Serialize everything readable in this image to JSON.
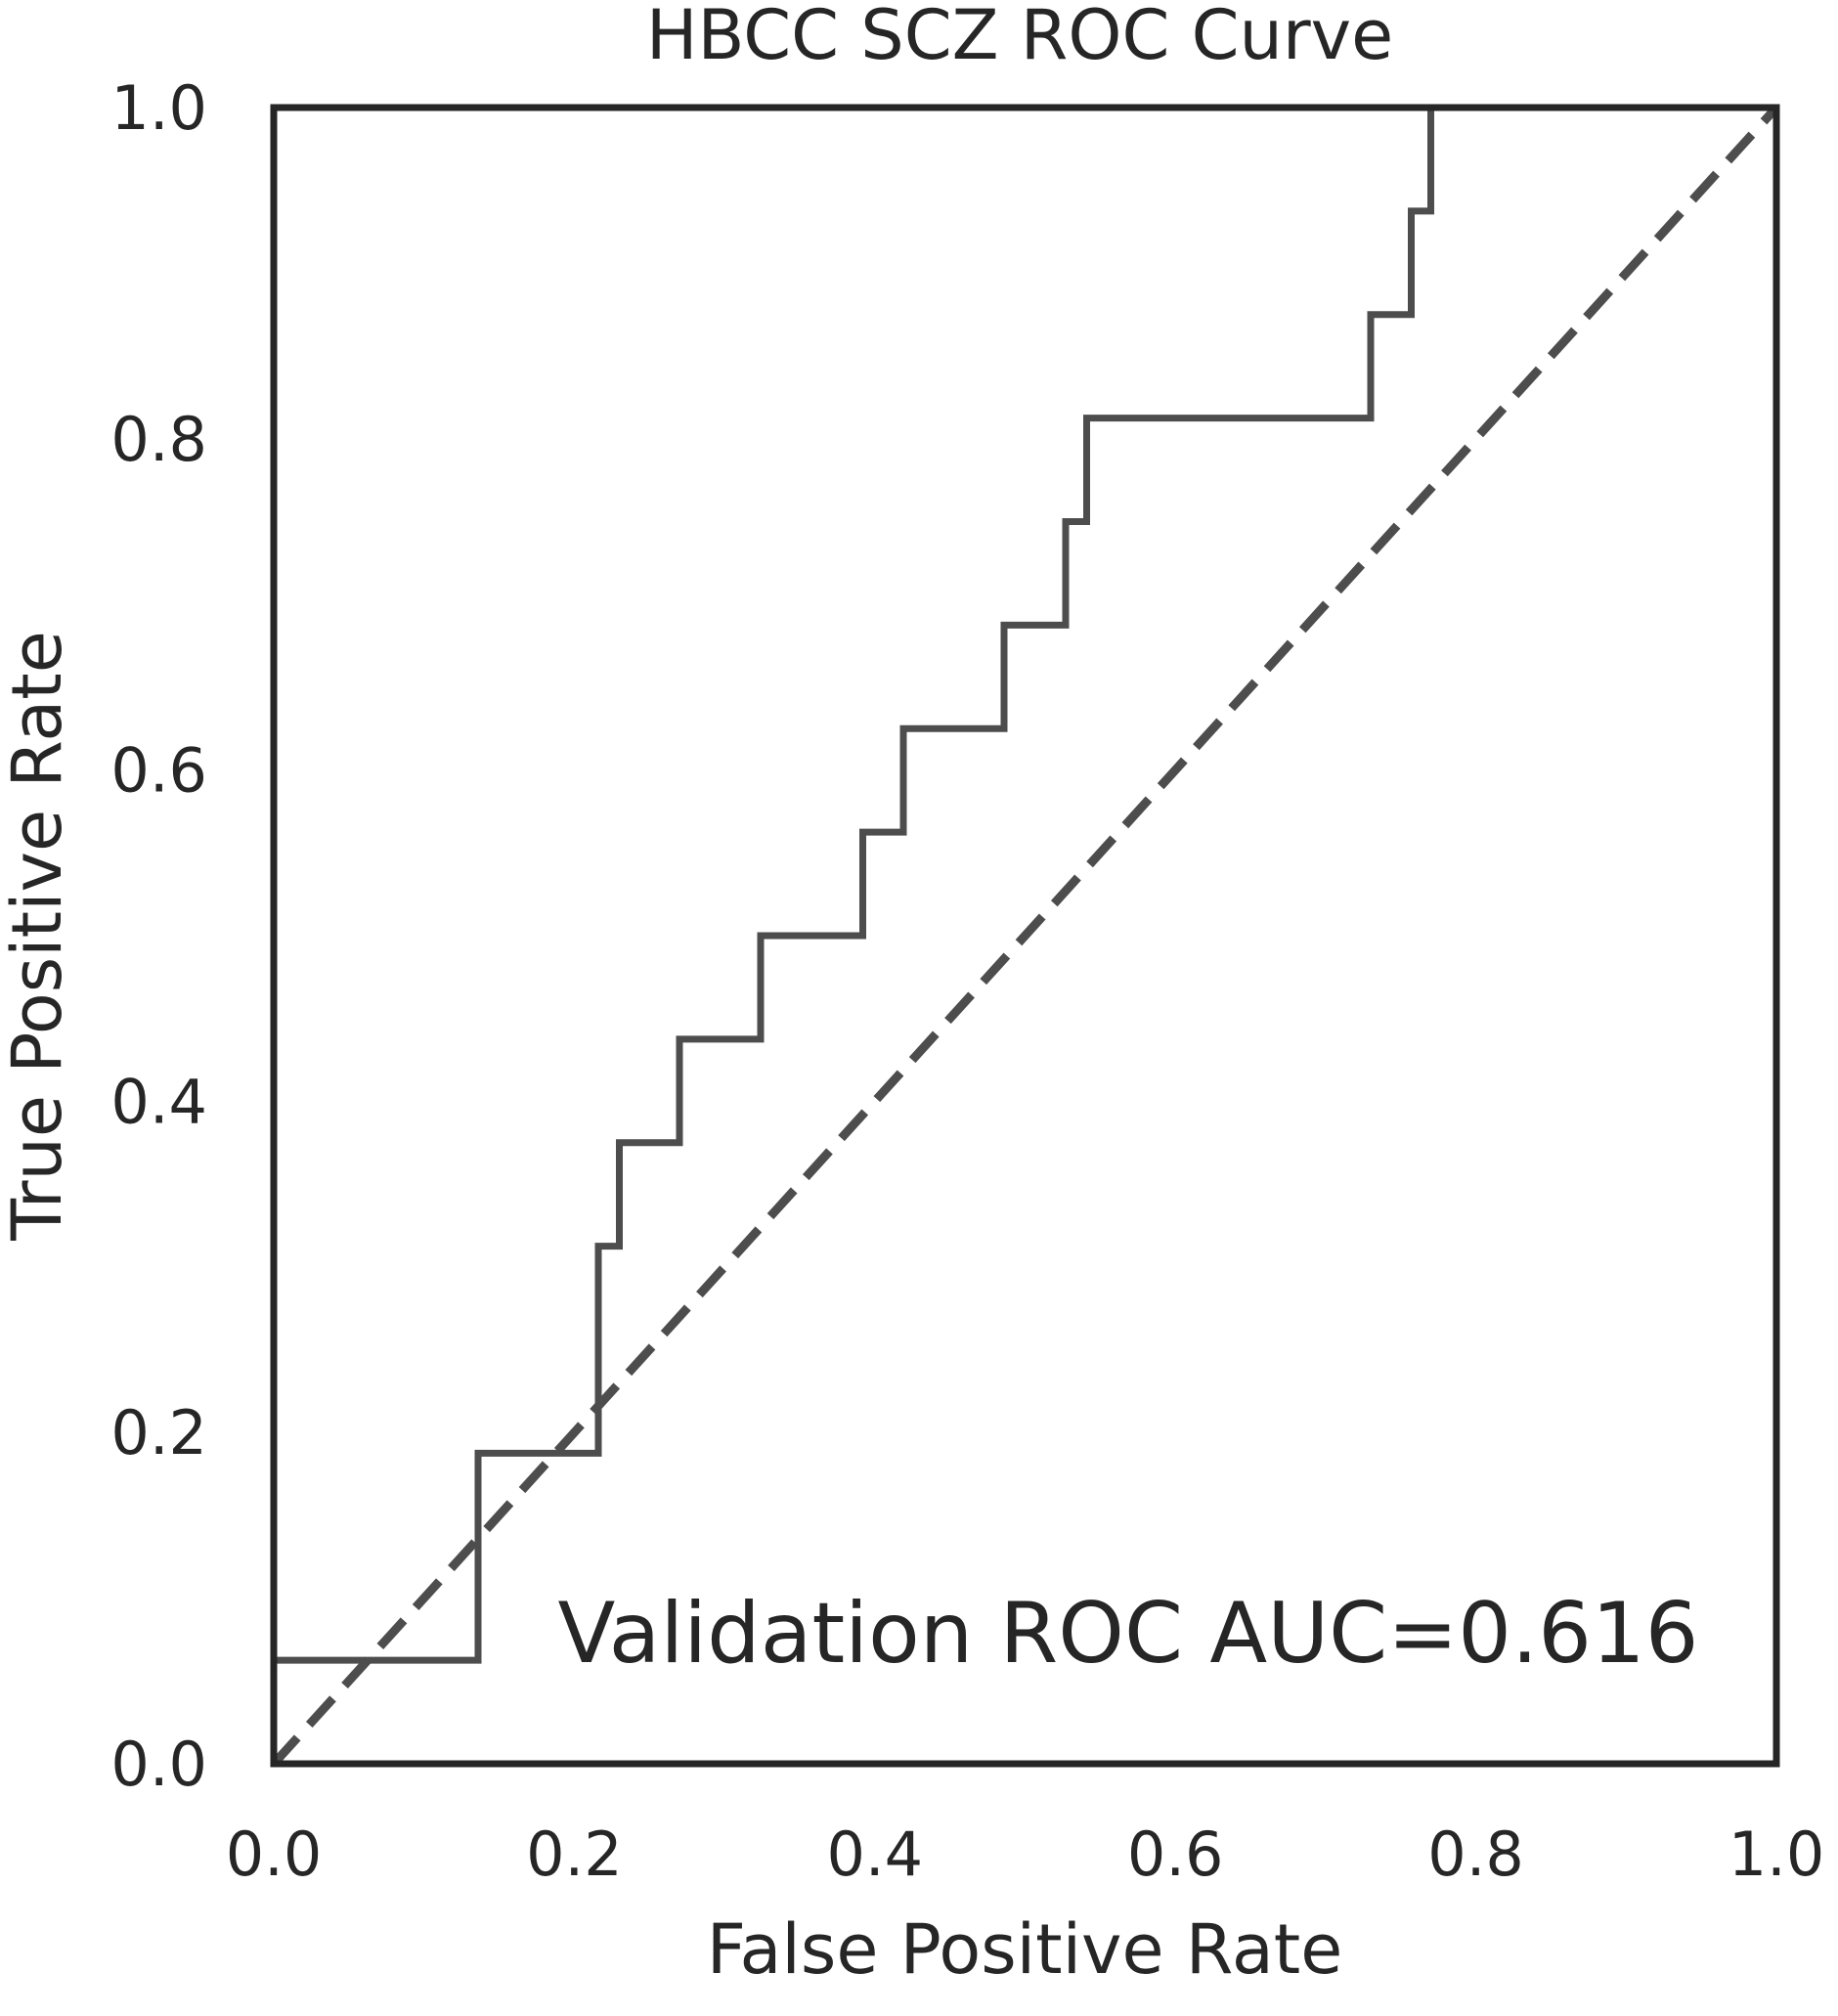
{
  "chart_data": {
    "type": "line",
    "title": "HBCC SCZ ROC Curve",
    "xlabel": "False Positive Rate",
    "ylabel": "True Positive Rate",
    "xlim": [
      0,
      1
    ],
    "ylim": [
      0,
      1
    ],
    "x_ticks": [
      "0.0",
      "0.2",
      "0.4",
      "0.6",
      "0.8",
      "1.0"
    ],
    "y_ticks": [
      "0.0",
      "0.2",
      "0.4",
      "0.6",
      "0.8",
      "1.0"
    ],
    "grid": false,
    "legend": "none",
    "annotation": "Validation ROC AUC=0.616",
    "colors": {
      "curve": "#4d4d4d",
      "diagonal": "#4d4d4d",
      "frame": "#262626"
    },
    "series": [
      {
        "style": "solid-step",
        "x": [
          0.0,
          0.0,
          0.136,
          0.136,
          0.216,
          0.216,
          0.23,
          0.23,
          0.27,
          0.27,
          0.324,
          0.324,
          0.392,
          0.392,
          0.419,
          0.419,
          0.486,
          0.486,
          0.527,
          0.527,
          0.541,
          0.541,
          0.73,
          0.73,
          0.757,
          0.757,
          0.77,
          0.77
        ],
        "y": [
          0.0,
          0.0625,
          0.0625,
          0.1875,
          0.1875,
          0.3125,
          0.3125,
          0.375,
          0.375,
          0.4375,
          0.4375,
          0.5,
          0.5,
          0.5625,
          0.5625,
          0.625,
          0.625,
          0.6875,
          0.6875,
          0.75,
          0.75,
          0.8125,
          0.8125,
          0.875,
          0.875,
          0.9375,
          0.9375,
          1.0
        ]
      },
      {
        "style": "dashed-diagonal",
        "x": [
          0,
          1
        ],
        "y": [
          0,
          1
        ]
      }
    ]
  }
}
